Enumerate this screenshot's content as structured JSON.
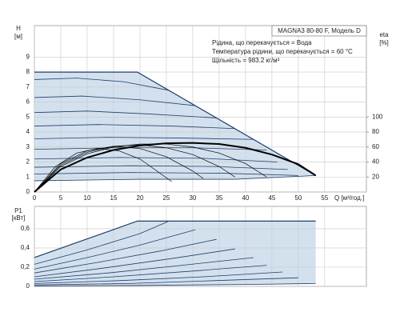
{
  "chart_data": [
    {
      "type": "line",
      "title": "MAGNA3 80-80 F, Модель D",
      "annotations": [
        "Рідина, що перекачується = Вода",
        "Температура рідини, що перекачується = 60 °C",
        "Щільність = 983.2 кг/м³"
      ],
      "y_label": "H",
      "y_unit": "[м]",
      "y2_label": "eta",
      "y2_unit": "[%]",
      "x_label": "Q [м³/год.]",
      "xlim": [
        0,
        62.9
      ],
      "xticks": [
        0,
        5,
        10,
        15,
        20,
        25,
        30,
        35,
        40,
        45,
        50,
        55
      ],
      "ylim": [
        0,
        11.1
      ],
      "yticks": [
        0,
        1,
        2,
        3,
        4,
        5,
        6,
        7,
        8,
        9
      ],
      "y2lim": [
        0,
        222
      ],
      "y2ticks": [
        20,
        40,
        60,
        80,
        100
      ],
      "grid": true,
      "shade_color": "#d3e1ee",
      "series": [
        {
          "color": "#1f3d6b",
          "line_width": 1.2,
          "x": [
            0,
            19.5,
            53.3
          ],
          "values": [
            8,
            8,
            1.1
          ]
        },
        {
          "color": "#1f3d6b",
          "line_width": 0.8,
          "x": [
            0,
            8,
            17,
            25.5
          ],
          "values": [
            7.5,
            7.6,
            7.35,
            6.78
          ]
        },
        {
          "color": "#1f3d6b",
          "line_width": 0.8,
          "x": [
            0,
            9,
            20,
            30.5
          ],
          "values": [
            6.3,
            6.4,
            6.15,
            5.76
          ]
        },
        {
          "color": "#1f3d6b",
          "line_width": 0.8,
          "x": [
            0,
            10,
            22,
            34.5
          ],
          "values": [
            5.3,
            5.4,
            5.2,
            4.94
          ]
        },
        {
          "color": "#1f3d6b",
          "line_width": 0.8,
          "x": [
            0,
            12,
            26,
            38
          ],
          "values": [
            4.4,
            4.5,
            4.4,
            4.23
          ]
        },
        {
          "color": "#1f3d6b",
          "line_width": 0.8,
          "x": [
            0,
            14,
            28,
            41.5
          ],
          "values": [
            3.55,
            3.65,
            3.6,
            3.51
          ]
        },
        {
          "color": "#1f3d6b",
          "line_width": 0.8,
          "x": [
            0,
            15,
            30,
            44
          ],
          "values": [
            2.85,
            2.95,
            2.95,
            2.8
          ]
        },
        {
          "color": "#1f3d6b",
          "line_width": 0.8,
          "x": [
            0,
            16,
            32,
            46
          ],
          "values": [
            2.2,
            2.3,
            2.25,
            2.0
          ]
        },
        {
          "color": "#1f3d6b",
          "line_width": 0.8,
          "x": [
            0,
            18,
            34,
            48
          ],
          "values": [
            1.65,
            1.75,
            1.7,
            1.5
          ]
        },
        {
          "color": "#1f3d6b",
          "line_width": 0.8,
          "x": [
            0,
            18,
            36,
            50
          ],
          "values": [
            1.2,
            1.3,
            1.25,
            1.1
          ]
        },
        {
          "color": "#1f3d6b",
          "line_width": 0.8,
          "x": [
            0,
            20,
            38,
            53.3
          ],
          "values": [
            0.75,
            0.85,
            0.85,
            1.1
          ]
        },
        {
          "axis": "y2",
          "color": "#000000",
          "line_width": 2,
          "x": [
            0,
            5,
            10,
            15,
            20,
            25,
            30,
            35,
            40,
            45,
            50,
            53.3
          ],
          "values": [
            0,
            30,
            46,
            56,
            62,
            65,
            65.5,
            64,
            59,
            50,
            37,
            22
          ]
        },
        {
          "axis": "y2",
          "color": "#000000",
          "line_width": 0.7,
          "x": [
            0,
            5,
            10,
            15,
            20,
            25,
            30,
            35,
            40,
            44
          ],
          "values": [
            0,
            34,
            51,
            60,
            64,
            64,
            60,
            52,
            38,
            20
          ]
        },
        {
          "axis": "y2",
          "color": "#000000",
          "line_width": 0.7,
          "x": [
            0,
            5,
            10,
            15,
            20,
            25,
            30,
            35,
            38
          ],
          "values": [
            0,
            36,
            53,
            61,
            63,
            59,
            50,
            34,
            20
          ]
        },
        {
          "axis": "y2",
          "color": "#000000",
          "line_width": 0.7,
          "x": [
            0,
            5,
            10,
            15,
            20,
            25,
            30,
            32
          ],
          "values": [
            0,
            38,
            55,
            61,
            58,
            47,
            28,
            18
          ]
        },
        {
          "axis": "y2",
          "color": "#000000",
          "line_width": 0.7,
          "x": [
            0,
            4,
            8,
            12,
            16,
            20,
            24,
            26
          ],
          "values": [
            0,
            34,
            52,
            58,
            55,
            44,
            24,
            14
          ]
        }
      ]
    },
    {
      "type": "line",
      "y_label": "P1",
      "y_unit": "[кВт]",
      "xlim": [
        0,
        62.9
      ],
      "xticks": [
        0,
        5,
        10,
        15,
        20,
        25,
        30,
        35,
        40,
        45,
        50,
        55
      ],
      "ylim": [
        0,
        0.833
      ],
      "yticks": [
        0,
        {
          "value": 0.2,
          "label": "0,2"
        },
        {
          "value": 0.4,
          "label": "0,4"
        },
        {
          "value": 0.6,
          "label": "0,6"
        }
      ],
      "grid": true,
      "shade_color": "#d3e1ee",
      "series": [
        {
          "color": "#1f3d6b",
          "line_width": 1.2,
          "x": [
            0,
            19.5,
            53.3
          ],
          "values": [
            0.3,
            0.68,
            0.68
          ]
        },
        {
          "color": "#1f3d6b",
          "line_width": 0.8,
          "x": [
            0,
            10,
            20,
            25.5
          ],
          "values": [
            0.23,
            0.38,
            0.55,
            0.68
          ]
        },
        {
          "color": "#1f3d6b",
          "line_width": 0.8,
          "x": [
            0,
            10,
            20,
            30.5
          ],
          "values": [
            0.18,
            0.3,
            0.43,
            0.59
          ]
        },
        {
          "color": "#1f3d6b",
          "line_width": 0.8,
          "x": [
            0,
            12,
            24,
            34.5
          ],
          "values": [
            0.14,
            0.25,
            0.37,
            0.49
          ]
        },
        {
          "color": "#1f3d6b",
          "line_width": 0.8,
          "x": [
            0,
            13,
            26,
            38
          ],
          "values": [
            0.1,
            0.19,
            0.29,
            0.39
          ]
        },
        {
          "color": "#1f3d6b",
          "line_width": 0.8,
          "x": [
            0,
            14,
            28,
            41.5
          ],
          "values": [
            0.075,
            0.14,
            0.22,
            0.3
          ]
        },
        {
          "color": "#1f3d6b",
          "line_width": 0.8,
          "x": [
            0,
            15,
            30,
            44
          ],
          "values": [
            0.05,
            0.1,
            0.16,
            0.22
          ]
        },
        {
          "color": "#1f3d6b",
          "line_width": 0.8,
          "x": [
            0,
            16,
            32,
            47
          ],
          "values": [
            0.03,
            0.06,
            0.1,
            0.15
          ]
        },
        {
          "color": "#1f3d6b",
          "line_width": 0.8,
          "x": [
            0,
            18,
            34,
            50
          ],
          "values": [
            0.015,
            0.03,
            0.06,
            0.09
          ]
        },
        {
          "color": "#1f3d6b",
          "line_width": 0.8,
          "x": [
            0,
            20,
            40,
            53.3
          ],
          "values": [
            0.005,
            0.01,
            0.02,
            0.03
          ]
        }
      ]
    }
  ]
}
